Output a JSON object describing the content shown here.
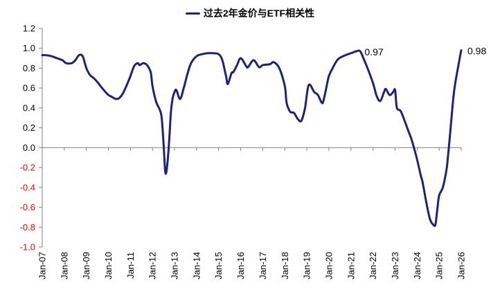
{
  "legend": {
    "label": "过去2年金价与ETF相关性"
  },
  "annotations": [
    {
      "text": "0.97",
      "t": 172,
      "v": 0.97
    },
    {
      "text": "0.98",
      "t": 228,
      "v": 0.98
    }
  ],
  "colors": {
    "line": "#1B217C",
    "axis": "#808080",
    "tick_label_positive": "#000000",
    "tick_label_negative": "#FF0000"
  },
  "chart_data": {
    "type": "line",
    "title": "过去2年金价与ETF相关性",
    "xlabel": "",
    "ylabel": "",
    "x_unit": "months since Jan-2007 (t=0 is Jan-07, 12 per year)",
    "x_tick_labels": [
      "Jan-07",
      "Jan-08",
      "Jan-09",
      "Jan-10",
      "Jan-11",
      "Jan-12",
      "Jan-13",
      "Jan-14",
      "Jan-15",
      "Jan-16",
      "Jan-17",
      "Jan-18",
      "Jan-19",
      "Jan-20",
      "Jan-21",
      "Jan-22",
      "Jan-23",
      "Jan-24",
      "Jan-25",
      "Jan-26"
    ],
    "y_tick_labels": [
      "1.2",
      "1.0",
      "0.8",
      "0.6",
      "0.4",
      "0.2",
      "0.0",
      "-0.2",
      "-0.4",
      "-0.6",
      "-0.8",
      "-1.0"
    ],
    "ylim": [
      -1.0,
      1.2
    ],
    "grid": false,
    "zero_line": true,
    "legend_position": "top-center",
    "series": [
      {
        "name": "过去2年金价与ETF相关性",
        "color": "#1B217C",
        "points": [
          [
            0,
            0.93
          ],
          [
            2,
            0.93
          ],
          [
            5,
            0.92
          ],
          [
            8,
            0.9
          ],
          [
            11,
            0.88
          ],
          [
            13,
            0.85
          ],
          [
            16,
            0.85
          ],
          [
            18,
            0.88
          ],
          [
            20,
            0.93
          ],
          [
            22,
            0.92
          ],
          [
            24,
            0.8
          ],
          [
            26,
            0.73
          ],
          [
            28,
            0.7
          ],
          [
            30,
            0.66
          ],
          [
            33,
            0.59
          ],
          [
            36,
            0.53
          ],
          [
            38,
            0.51
          ],
          [
            40,
            0.49
          ],
          [
            42,
            0.5
          ],
          [
            44,
            0.55
          ],
          [
            46,
            0.63
          ],
          [
            48,
            0.72
          ],
          [
            50,
            0.82
          ],
          [
            52,
            0.85
          ],
          [
            53,
            0.83
          ],
          [
            55,
            0.85
          ],
          [
            57,
            0.83
          ],
          [
            59,
            0.76
          ],
          [
            60,
            0.62
          ],
          [
            62,
            0.46
          ],
          [
            64,
            0.38
          ],
          [
            65,
            0.3
          ],
          [
            66,
            0.05
          ],
          [
            67,
            -0.25
          ],
          [
            68,
            -0.18
          ],
          [
            69,
            0.05
          ],
          [
            70,
            0.35
          ],
          [
            71,
            0.5
          ],
          [
            72,
            0.56
          ],
          [
            73,
            0.58
          ],
          [
            75,
            0.49
          ],
          [
            77,
            0.6
          ],
          [
            79,
            0.74
          ],
          [
            81,
            0.85
          ],
          [
            84,
            0.92
          ],
          [
            87,
            0.94
          ],
          [
            90,
            0.95
          ],
          [
            93,
            0.95
          ],
          [
            96,
            0.94
          ],
          [
            98,
            0.88
          ],
          [
            100,
            0.72
          ],
          [
            101,
            0.64
          ],
          [
            103,
            0.75
          ],
          [
            104,
            0.76
          ],
          [
            106,
            0.83
          ],
          [
            108,
            0.9
          ],
          [
            111,
            0.82
          ],
          [
            112,
            0.81
          ],
          [
            115,
            0.88
          ],
          [
            118,
            0.81
          ],
          [
            120,
            0.83
          ],
          [
            124,
            0.84
          ],
          [
            126,
            0.86
          ],
          [
            129,
            0.8
          ],
          [
            132,
            0.62
          ],
          [
            133,
            0.45
          ],
          [
            135,
            0.36
          ],
          [
            137,
            0.35
          ],
          [
            139,
            0.29
          ],
          [
            141,
            0.27
          ],
          [
            143,
            0.4
          ],
          [
            145,
            0.63
          ],
          [
            148,
            0.56
          ],
          [
            150,
            0.53
          ],
          [
            152,
            0.455
          ],
          [
            153,
            0.47
          ],
          [
            155,
            0.64
          ],
          [
            156,
            0.72
          ],
          [
            158,
            0.8
          ],
          [
            161,
            0.89
          ],
          [
            165,
            0.93
          ],
          [
            168,
            0.95
          ],
          [
            171,
            0.97
          ],
          [
            173,
            0.97
          ],
          [
            175,
            0.89
          ],
          [
            177,
            0.8
          ],
          [
            180,
            0.65
          ],
          [
            182,
            0.52
          ],
          [
            184,
            0.47
          ],
          [
            186,
            0.56
          ],
          [
            187,
            0.59
          ],
          [
            189,
            0.53
          ],
          [
            191,
            0.56
          ],
          [
            192,
            0.58
          ],
          [
            193,
            0.4
          ],
          [
            195,
            0.37
          ],
          [
            197,
            0.28
          ],
          [
            199,
            0.18
          ],
          [
            201,
            0.08
          ],
          [
            203,
            -0.05
          ],
          [
            204,
            -0.12
          ],
          [
            206,
            -0.28
          ],
          [
            207,
            -0.35
          ],
          [
            209,
            -0.55
          ],
          [
            211,
            -0.72
          ],
          [
            213,
            -0.78
          ],
          [
            214,
            -0.77
          ],
          [
            215,
            -0.62
          ],
          [
            216,
            -0.48
          ],
          [
            218,
            -0.4
          ],
          [
            220,
            -0.22
          ],
          [
            221,
            -0.05
          ],
          [
            222,
            0.15
          ],
          [
            224,
            0.55
          ],
          [
            226,
            0.78
          ],
          [
            228,
            0.98
          ]
        ]
      }
    ]
  }
}
